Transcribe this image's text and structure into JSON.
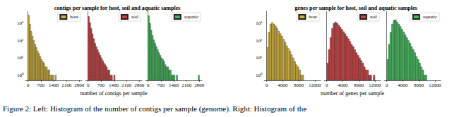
{
  "caption": "Figure 2: Left: Histogram of the number of contigs per sample (genome). Right: Histogram of the",
  "chart_data": [
    {
      "type": "histogram",
      "name": "host",
      "color": "#cfae3a",
      "bins": [
        0,
        70,
        140,
        210,
        280,
        350,
        420,
        490,
        560,
        630,
        700,
        770,
        840,
        910,
        980,
        1050,
        1120,
        1190,
        1260,
        1330,
        1400,
        1470,
        1540,
        1610,
        1680,
        1750,
        1820,
        1890,
        1960,
        2030,
        2100,
        2170,
        2240,
        2310,
        2380,
        2450,
        2520,
        2590,
        2660,
        2730,
        2800
      ],
      "counts": [
        3000,
        900,
        350,
        180,
        100,
        60,
        40,
        25,
        18,
        12,
        8,
        6,
        5,
        3,
        3,
        2,
        2,
        1,
        1,
        1,
        0,
        1,
        0,
        0,
        0,
        0,
        0,
        0,
        0,
        0,
        0,
        0,
        0,
        0,
        0,
        0,
        0,
        0,
        0,
        0
      ],
      "xlim": [
        -140,
        2940
      ],
      "xticks": [
        0,
        700,
        1400,
        2100,
        2800
      ],
      "ylim": [
        0.5,
        5000
      ],
      "yticks": [
        {
          "value": 1,
          "label": "10⁰"
        },
        {
          "value": 10,
          "label": "10¹"
        },
        {
          "value": 100,
          "label": "10²"
        },
        {
          "value": 1000,
          "label": "10³"
        }
      ],
      "log": "y",
      "grid": false,
      "legend": "upper right"
    },
    {
      "type": "histogram",
      "name": "soil",
      "color": "#c94141",
      "title": "contigs per sample for host, soil and aquatic samples",
      "xlabel": "number of contigs per sample",
      "bins": [
        0,
        70,
        140,
        210,
        280,
        350,
        420,
        490,
        560,
        630,
        700,
        770,
        840,
        910,
        980,
        1050,
        1120,
        1190,
        1260,
        1330,
        1400,
        1470,
        1540,
        1610,
        1680,
        1750,
        1820,
        1890,
        1960,
        2030,
        2100,
        2170,
        2240,
        2310,
        2380,
        2450,
        2520,
        2590,
        2660,
        2730,
        2800
      ],
      "counts": [
        2500,
        1100,
        500,
        250,
        130,
        70,
        45,
        30,
        20,
        14,
        10,
        7,
        5,
        4,
        3,
        2,
        2,
        1,
        1,
        0,
        1,
        0,
        0,
        0,
        0,
        0,
        0,
        0,
        0,
        0,
        0,
        0,
        0,
        0,
        0,
        0,
        0,
        0,
        0,
        0
      ],
      "xlim": [
        -140,
        2940
      ],
      "xticks": [
        0,
        700,
        1400,
        2100,
        2800
      ],
      "ylim": [
        0.5,
        5000
      ],
      "yticks": [
        {
          "value": 1,
          "label": "10⁰"
        },
        {
          "value": 10,
          "label": "10¹"
        },
        {
          "value": 100,
          "label": "10²"
        },
        {
          "value": 1000,
          "label": "10³"
        }
      ],
      "log": "y",
      "grid": false,
      "legend": "upper right",
      "tick_labels": "x"
    },
    {
      "type": "histogram",
      "name": "aquatic",
      "color": "#43b85c",
      "bins": [
        0,
        70,
        140,
        210,
        280,
        350,
        420,
        490,
        560,
        630,
        700,
        770,
        840,
        910,
        980,
        1050,
        1120,
        1190,
        1260,
        1330,
        1400,
        1470,
        1540,
        1610,
        1680,
        1750,
        1820,
        1890,
        1960,
        2030,
        2100,
        2170,
        2240,
        2310,
        2380,
        2450,
        2520,
        2590,
        2660,
        2730,
        2800
      ],
      "counts": [
        2800,
        1000,
        400,
        200,
        110,
        70,
        45,
        30,
        20,
        14,
        10,
        8,
        6,
        4,
        3,
        3,
        2,
        2,
        1,
        1,
        1,
        0,
        1,
        0,
        0,
        0,
        0,
        0,
        0,
        0,
        0,
        0,
        0,
        0,
        0,
        0,
        0,
        0,
        0,
        1
      ],
      "xlim": [
        -140,
        2940
      ],
      "xticks": [
        0,
        700,
        1400,
        2100,
        2800
      ],
      "ylim": [
        0.5,
        5000
      ],
      "yticks": [
        {
          "value": 1,
          "label": "10⁰"
        },
        {
          "value": 10,
          "label": "10¹"
        },
        {
          "value": 100,
          "label": "10²"
        },
        {
          "value": 1000,
          "label": "10³"
        }
      ],
      "log": "y",
      "grid": false,
      "legend": "upper right",
      "tick_labels": "x"
    },
    {
      "type": "histogram",
      "name": "host",
      "color": "#cfae3a",
      "bins": [
        0,
        400,
        800,
        1200,
        1600,
        2000,
        2400,
        2800,
        3200,
        3600,
        4000,
        4400,
        4800,
        5200,
        5600,
        6000,
        6400,
        6800,
        7200,
        7600,
        8000,
        8400,
        8800,
        9200,
        9600,
        10000,
        10400,
        10800,
        11200,
        11600,
        12000,
        12400,
        12800
      ],
      "counts": [
        40,
        300,
        900,
        1100,
        900,
        700,
        500,
        350,
        250,
        180,
        120,
        80,
        50,
        35,
        25,
        15,
        10,
        6,
        4,
        3,
        2,
        1,
        1,
        0,
        0,
        0,
        0,
        0,
        0,
        0,
        0,
        0
      ],
      "xlim": [
        -640,
        13440
      ],
      "xticks": [
        0,
        4000,
        8000,
        12000
      ],
      "ylim": [
        0.5,
        5000
      ],
      "yticks": [
        {
          "value": 1,
          "label": "10⁰"
        },
        {
          "value": 10,
          "label": "10¹"
        },
        {
          "value": 100,
          "label": "10²"
        },
        {
          "value": 1000,
          "label": "10³"
        }
      ],
      "log": "y",
      "grid": false,
      "legend": "upper right"
    },
    {
      "type": "histogram",
      "name": "soil",
      "color": "#c94141",
      "title": "genes per sample for host, soil and aquatic samples",
      "xlabel": "number of genes per sample",
      "bins": [
        0,
        400,
        800,
        1200,
        1600,
        2000,
        2400,
        2800,
        3200,
        3600,
        4000,
        4400,
        4800,
        5200,
        5600,
        6000,
        6400,
        6800,
        7200,
        7600,
        8000,
        8400,
        8800,
        9200,
        9600,
        10000,
        10400,
        10800,
        11200,
        11600,
        12000,
        12400,
        12800
      ],
      "counts": [
        5,
        30,
        150,
        500,
        1000,
        1200,
        1000,
        800,
        600,
        450,
        330,
        250,
        180,
        130,
        90,
        60,
        45,
        30,
        20,
        14,
        10,
        7,
        5,
        3,
        2,
        2,
        1,
        1,
        0,
        1,
        0,
        0
      ],
      "xlim": [
        -640,
        13440
      ],
      "xticks": [
        0,
        4000,
        8000,
        12000
      ],
      "ylim": [
        0.5,
        5000
      ],
      "yticks": [
        {
          "value": 1,
          "label": "10⁰"
        },
        {
          "value": 10,
          "label": "10¹"
        },
        {
          "value": 100,
          "label": "10²"
        },
        {
          "value": 1000,
          "label": "10³"
        }
      ],
      "log": "y",
      "grid": false,
      "legend": "upper right",
      "tick_labels": "x"
    },
    {
      "type": "histogram",
      "name": "aquatic",
      "color": "#43b85c",
      "bins": [
        0,
        400,
        800,
        1200,
        1600,
        2000,
        2400,
        2800,
        3200,
        3600,
        4000,
        4400,
        4800,
        5200,
        5600,
        6000,
        6400,
        6800,
        7200,
        7600,
        8000,
        8400,
        8800,
        9200,
        9600,
        10000,
        10400,
        10800,
        11200,
        11600,
        12000,
        12400,
        12800
      ],
      "counts": [
        8,
        60,
        300,
        900,
        1500,
        1600,
        1200,
        900,
        650,
        450,
        320,
        220,
        150,
        100,
        70,
        45,
        30,
        20,
        12,
        8,
        5,
        3,
        2,
        1,
        1,
        0,
        0,
        0,
        0,
        0,
        0,
        0
      ],
      "xlim": [
        -640,
        13440
      ],
      "xticks": [
        0,
        4000,
        8000,
        12000
      ],
      "ylim": [
        0.5,
        5000
      ],
      "yticks": [
        {
          "value": 1,
          "label": "10⁰"
        },
        {
          "value": 10,
          "label": "10¹"
        },
        {
          "value": 100,
          "label": "10²"
        },
        {
          "value": 1000,
          "label": "10³"
        }
      ],
      "log": "y",
      "grid": false,
      "legend": "upper right",
      "tick_labels": "x"
    }
  ]
}
